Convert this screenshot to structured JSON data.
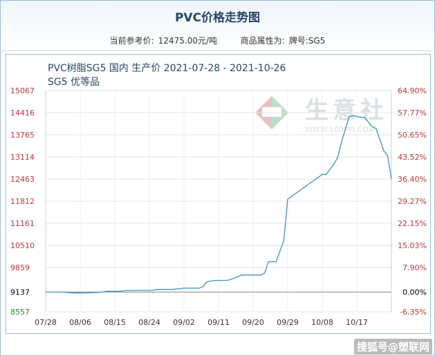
{
  "header": {
    "title": "PVC价格走势图",
    "price_label": "当前参考价:",
    "price_value": "12475.00元/吨",
    "attr_label": "商品属性为:",
    "attr_value": "牌号:SG5"
  },
  "watermark": {
    "logo_text": "生意社",
    "url_text": "WWW.100PPI.COM"
  },
  "footer": {
    "tag": "搜狐号@塑联网"
  },
  "colors": {
    "line": "#3a93c9",
    "left_axis": "#c0353a",
    "right_axis": "#c0353a",
    "baseline_label": "#000000",
    "min_label": "#2a8a2a"
  },
  "chart_data": {
    "type": "line",
    "title": "PVC树脂SG5 国内 生产价 2021-07-28 - 2021-10-26",
    "subtitle": "SG5 优等品",
    "x_ticks": [
      "07/28",
      "08/06",
      "08/15",
      "08/24",
      "09/02",
      "09/11",
      "09/20",
      "09/29",
      "10/08",
      "10/17"
    ],
    "x_range": [
      "2021-07-28",
      "2021-10-26"
    ],
    "ylim": [
      8557,
      15067
    ],
    "y_ticks_left": [
      "15067",
      "14416",
      "13765",
      "13114",
      "12463",
      "11812",
      "11161",
      "10510",
      "9859",
      "9137",
      "8557"
    ],
    "y_ticks_right": [
      "64.90%",
      "57.77%",
      "50.65%",
      "43.52%",
      "36.40%",
      "29.27%",
      "22.15%",
      "15.03%",
      "7.90%",
      "0.00%",
      "-6.35%"
    ],
    "grid": true,
    "series": [
      {
        "x": [
          "2021-07-28",
          "2021-08-02",
          "2021-08-03",
          "2021-08-05",
          "2021-08-06",
          "2021-08-08",
          "2021-08-09",
          "2021-08-10",
          "2021-08-11",
          "2021-08-12",
          "2021-08-13",
          "2021-08-16",
          "2021-08-17",
          "2021-08-18",
          "2021-08-19",
          "2021-08-20",
          "2021-08-23",
          "2021-08-25",
          "2021-08-26",
          "2021-08-27",
          "2021-08-30",
          "2021-08-31",
          "2021-09-01",
          "2021-09-02",
          "2021-09-03",
          "2021-09-06",
          "2021-09-07",
          "2021-09-08",
          "2021-09-09",
          "2021-09-10",
          "2021-09-13",
          "2021-09-14",
          "2021-09-15",
          "2021-09-16",
          "2021-09-17",
          "2021-09-22",
          "2021-09-23",
          "2021-09-24",
          "2021-09-26",
          "2021-09-27",
          "2021-09-28",
          "2021-09-29",
          "2021-10-08",
          "2021-10-09",
          "2021-10-11",
          "2021-10-12",
          "2021-10-13",
          "2021-10-15",
          "2021-10-16",
          "2021-10-18",
          "2021-10-19",
          "2021-10-21",
          "2021-10-22",
          "2021-10-24",
          "2021-10-25",
          "2021-10-26"
        ],
        "values": [
          9137,
          9137,
          9120,
          9110,
          9110,
          9115,
          9120,
          9125,
          9130,
          9140,
          9160,
          9160,
          9170,
          9180,
          9185,
          9185,
          9185,
          9190,
          9215,
          9215,
          9215,
          9230,
          9235,
          9250,
          9250,
          9250,
          9300,
          9440,
          9460,
          9480,
          9480,
          9500,
          9540,
          9590,
          9640,
          9640,
          9700,
          10030,
          10030,
          10350,
          10650,
          11870,
          12600,
          12600,
          12900,
          13100,
          13550,
          14300,
          14330,
          14280,
          14280,
          14000,
          13950,
          13300,
          13150,
          12475
        ]
      }
    ]
  }
}
